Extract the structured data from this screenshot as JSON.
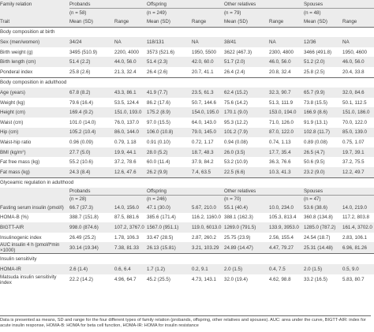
{
  "header": {
    "family_relation": "Family relation",
    "trait": "Trait",
    "probands": "Probands",
    "probands_n": "(n = 58)",
    "offspring": "Offspring",
    "offspring_n": "(n = 249)",
    "other": "Other relatives",
    "other_n": "(n = 79)",
    "spouses": "Spouses",
    "spouses_n": "(n = 48)",
    "mean": "Mean (SD)",
    "range": "Range"
  },
  "sections": {
    "birth": "Body composition at birth",
    "adult": "Body composition in adulthood",
    "glyc": "Glyceamic regulation in adulthood",
    "insulin": "Insulin sensitivity"
  },
  "birth_rows": [
    {
      "label": "Sex (men/women)",
      "v": [
        "34/24",
        "NA",
        "118/131",
        "NA",
        "38/41",
        "NA",
        "12/36",
        "NA"
      ]
    },
    {
      "label": "Birth weight (g)",
      "v": [
        "3495 (510.9)",
        "2200, 4000",
        "3573 (521.6)",
        "1950, 5500",
        "3622 (467.3)",
        "2300, 4800",
        "3466 (491.8)",
        "1950, 4600"
      ]
    },
    {
      "label": "Birth length (cm)",
      "v": [
        "51.4 (2.2)",
        "44.0, 56.0",
        "51.4 (2.3)",
        "42.0, 60.0",
        "51.7 (2.0)",
        "46.0, 56.0",
        "51.2 (2.0)",
        "46.0, 56.0"
      ]
    },
    {
      "label": "Ponderal index",
      "v": [
        "25.8 (2.6)",
        "21.3, 32.4",
        "26.4 (2.6)",
        "20.7, 41.1",
        "26.4 (2.4)",
        "20.8, 32.4",
        "25.8 (2.5)",
        "20.4, 33.8"
      ]
    }
  ],
  "adult_rows": [
    {
      "label": "Age (years)",
      "v": [
        "67.8 (8.2)",
        "43.3, 86.1",
        "41.9 (7.7)",
        "23.5, 61.3",
        "62.4 (15.2)",
        "32.3, 90.7",
        "65.7 (9.9)",
        "32.0, 84.6"
      ]
    },
    {
      "label": "Weight (kg)",
      "v": [
        "79.6 (16.4)",
        "53.5, 124.4",
        "86.2 (17.6)",
        "50.7, 144.6",
        "75.6 (14.2)",
        "51.3, 111.9",
        "73.8 (15.5)",
        "50.1, 112.5"
      ]
    },
    {
      "label": "Height (cm)",
      "v": [
        "169.4 (9.2)",
        "151.0, 193.0",
        "175.2 (8.9)",
        "154.0, 195.0",
        "170.1 (9.0)",
        "153.0, 194.0",
        "166.9 (8.6)",
        "151.0, 186.0"
      ]
    },
    {
      "label": "Waist (cm)",
      "v": [
        "101.0 (14.0)",
        "76.0, 137.0",
        "97.0 (15.5)",
        "64.0, 143.0",
        "95.3 (12.2)",
        "71.0, 126.0",
        "91.9 (13.1)",
        "70.0, 122.0"
      ]
    },
    {
      "label": "Hip (cm)",
      "v": [
        "105.2 (10.4)",
        "86.0, 144.0",
        "106.0 (10.8)",
        "79.0, 145.0",
        "101.2 (7.9)",
        "87.0, 122.0",
        "102.8 (11.7)",
        "85.0, 139.0"
      ]
    },
    {
      "label": "Waist-hip ratio",
      "v": [
        "0.96 (0.09)",
        "0.79, 1.18",
        "0.91 (0.10)",
        "0.72, 1.17",
        "0.94 (0.08)",
        "0.74, 1.13",
        "0.89 (0.08)",
        "0.75, 1.07"
      ]
    },
    {
      "label_a": "BMI (kg/m",
      "label_sup": "2",
      "label_b": ")",
      "v": [
        "27.7 (5.0)",
        "19.9, 44.1",
        "28.0 (5.2)",
        "18.7, 48.3",
        "26.0 (3.5)",
        "17.7, 35.4",
        "26.5 (4.7)",
        "19.7, 39.1"
      ]
    },
    {
      "label": "Fat free mass (kg)",
      "v": [
        "55.2 (10.6)",
        "37.2, 78.6",
        "60.0 (11.4)",
        "37.9, 84.2",
        "53.2 (10.9)",
        "36.3, 76.6",
        "50.6 (9.5)",
        "37.2, 75.5"
      ]
    },
    {
      "label": "Fat mass (kg)",
      "v": [
        "24.3 (8.4)",
        "12.6, 47.6",
        "26.2 (9.9)",
        "7.4, 63.5",
        "22.5 (6.6)",
        "10.3, 41.3",
        "23.2 (9.0)",
        "12.2, 49.7"
      ]
    }
  ],
  "glyc_header": {
    "probands": "Probands",
    "probands_n": "(n = 28)",
    "offspring": "Offspring",
    "offspring_n": "(n = 246)",
    "other": "Other relatives",
    "other_n": "(n = 70)",
    "spouses": "Spouses",
    "spouses_n": "(n = 47)"
  },
  "glyc_rows": [
    {
      "label": "Fasting serum insulin (pmol/l)",
      "v": [
        "66.7 (37.3)",
        "14.0, 156.0",
        "47.1 (30.0)",
        "5.67, 210.0",
        "55.1 (40.4)",
        "10.0, 234.0",
        "53.6 (38.6)",
        "14.0, 219.0"
      ]
    },
    {
      "label": "HOMA-B (%)",
      "v": [
        "388.7 (151.8)",
        "87.5, 881.6",
        "385.6 (171.4)",
        "116.2, 1160.0",
        "388.1 (162.3)",
        "105.3, 813.4",
        "360.8 (134.8)",
        "117.2, 803.8"
      ]
    },
    {
      "label": "BIGTT-AIR",
      "v": [
        "998.0 (874.6)",
        "107.2, 3767.0",
        "1567.0 (951.1)",
        "119.0, 6013.0",
        "1269.0 (791.5)",
        "133.9, 3953.0",
        "1285.0 (787.2)",
        "161.4, 3702.0"
      ]
    },
    {
      "label": "Insulinogenic index",
      "v": [
        "26.49 (25.2)",
        "1.78, 106.3",
        "33.47 (28.5)",
        "2.87, 260.2",
        "25.75 (23.9)",
        "2.56, 155.4",
        "24.54 (18.7)",
        "2.83, 106.1"
      ]
    },
    {
      "label_a": "AUC insulin 4 h (pmol/l*min",
      "label_b": "×1000)",
      "v": [
        "30.14 (19.34)",
        "7.38, 81.33",
        "26.13 (15.81)",
        "3.21, 103.29",
        "24.89 (14.47)",
        "4.47, 79.27",
        "25.31 (14.48)",
        "6.96, 81.26"
      ]
    }
  ],
  "insulin_rows": [
    {
      "label": "HOMA-IR",
      "v": [
        "2.6 (1.4)",
        "0.6, 6.4",
        "1.7 (1.2)",
        "0.2, 9.1",
        "2.0 (1.5)",
        "0.4, 7.5",
        "2.0 (1.5)",
        "0.5, 9.0"
      ]
    },
    {
      "label_a": "Matsuda insulin sensitivity",
      "label_b": "index",
      "v": [
        "22.2 (14.2)",
        "4.96, 64.7",
        "45.2 (25.5)",
        "4.73, 143.1",
        "32.0 (19.4)",
        "4.62, 98.8",
        "33.2 (16.5)",
        "5.83, 80.7"
      ]
    }
  ],
  "footnote": "Data is presented as means, SD and range for the four different types of family relation (probands, offspring, other relatives and spouses). AUC: area under the curve, BIGTT-AIR: index for acute insulin response, HOMA-B: HOMA for beta cell function, HOMA-IR: HOMA for insulin resistance"
}
